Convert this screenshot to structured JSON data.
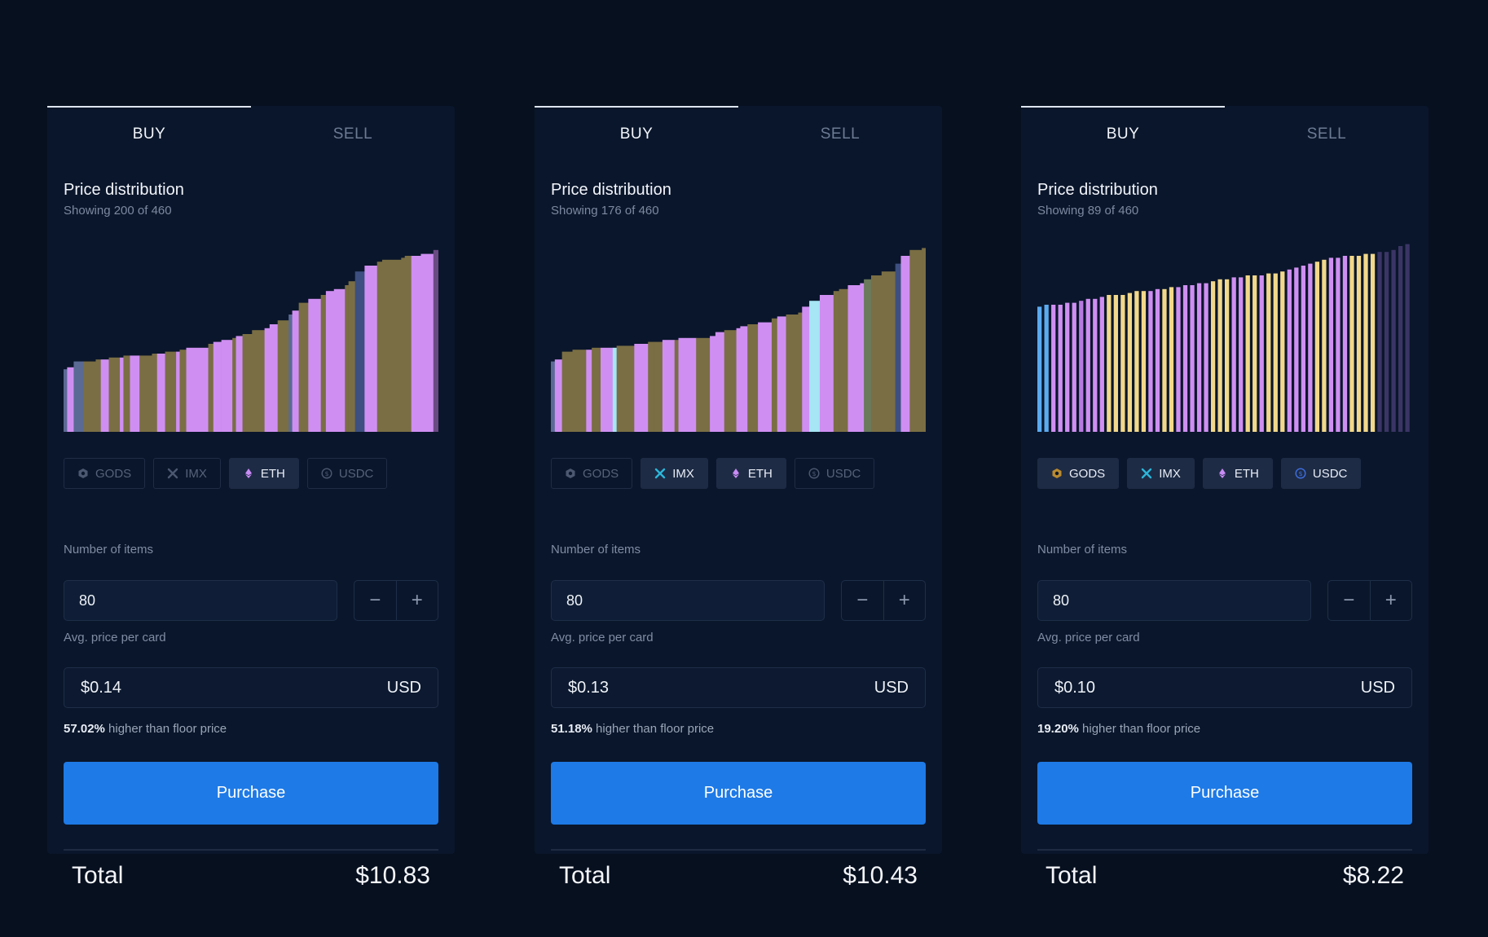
{
  "panels": [
    {
      "tabs": {
        "buy": "BUY",
        "sell": "SELL"
      },
      "distribution": {
        "title": "Price distribution",
        "subtitle": "Showing 200 of 460"
      },
      "currencies": [
        {
          "label": "GODS",
          "active": false,
          "icon": "gods-icon",
          "color": "#b98a2e"
        },
        {
          "label": "IMX",
          "active": false,
          "icon": "imx-icon",
          "color": "#2bb6d9"
        },
        {
          "label": "ETH",
          "active": true,
          "icon": "eth-icon",
          "color": "#c98cf5"
        },
        {
          "label": "USDC",
          "active": false,
          "icon": "usdc-icon",
          "color": "#3d6fe0"
        }
      ],
      "items_label": "Number of items",
      "items_value": "80",
      "avg_label": "Avg. price per card",
      "avg_value": "$0.14",
      "avg_currency": "USD",
      "floor_pct": "57.02%",
      "floor_text": " higher than floor price",
      "purchase_label": "Purchase",
      "total_label": "Total",
      "total_value": "$10.83"
    },
    {
      "tabs": {
        "buy": "BUY",
        "sell": "SELL"
      },
      "distribution": {
        "title": "Price distribution",
        "subtitle": "Showing 176 of 460"
      },
      "currencies": [
        {
          "label": "GODS",
          "active": false,
          "icon": "gods-icon",
          "color": "#b98a2e"
        },
        {
          "label": "IMX",
          "active": true,
          "icon": "imx-icon",
          "color": "#2bb6d9"
        },
        {
          "label": "ETH",
          "active": true,
          "icon": "eth-icon",
          "color": "#c98cf5"
        },
        {
          "label": "USDC",
          "active": false,
          "icon": "usdc-icon",
          "color": "#3d6fe0"
        }
      ],
      "items_label": "Number of items",
      "items_value": "80",
      "avg_label": "Avg. price per card",
      "avg_value": "$0.13",
      "avg_currency": "USD",
      "floor_pct": "51.18%",
      "floor_text": " higher than floor price",
      "purchase_label": "Purchase",
      "total_label": "Total",
      "total_value": "$10.43"
    },
    {
      "tabs": {
        "buy": "BUY",
        "sell": "SELL"
      },
      "distribution": {
        "title": "Price distribution",
        "subtitle": "Showing 89 of 460"
      },
      "currencies": [
        {
          "label": "GODS",
          "active": true,
          "icon": "gods-icon",
          "color": "#b98a2e"
        },
        {
          "label": "IMX",
          "active": true,
          "icon": "imx-icon",
          "color": "#2bb6d9"
        },
        {
          "label": "ETH",
          "active": true,
          "icon": "eth-icon",
          "color": "#c98cf5"
        },
        {
          "label": "USDC",
          "active": true,
          "icon": "usdc-icon",
          "color": "#3d6fe0"
        }
      ],
      "items_label": "Number of items",
      "items_value": "80",
      "avg_label": "Avg. price per card",
      "avg_value": "$0.10",
      "avg_currency": "USD",
      "floor_pct": "19.20%",
      "floor_text": " higher than floor price",
      "purchase_label": "Purchase",
      "total_label": "Total",
      "total_value": "$8.22"
    }
  ],
  "chart_data": [
    {
      "type": "bar",
      "series": [
        {
          "values": [
            0.32,
            0.33,
            0.36,
            0.36,
            0.37,
            0.37,
            0.38,
            0.38,
            0.39,
            0.39,
            0.39,
            0.4,
            0.4,
            0.41,
            0.41,
            0.42,
            0.43,
            0.43,
            0.45,
            0.46,
            0.47,
            0.48,
            0.49,
            0.5,
            0.52,
            0.53,
            0.55,
            0.57,
            0.6,
            0.62,
            0.66,
            0.68,
            0.7,
            0.72,
            0.73,
            0.75,
            0.77,
            0.82,
            0.85,
            0.87,
            0.88,
            0.88,
            0.89,
            0.9,
            0.9,
            0.91,
            0.93
          ]
        },
        {
          "colors": [
            "#5a6a94",
            "#cf8ff2",
            "#5a6a94",
            "#7a6e44",
            "#7a6e44",
            "#cf8ff2",
            "#7a6e44",
            "#cf8ff2",
            "#7a6e44",
            "#cf8ff2",
            "#7a6e44",
            "#7a6e44",
            "#cf8ff2",
            "#7a6e44",
            "#cf8ff2",
            "#7a6e44",
            "#cf8ff2",
            "#cf8ff2",
            "#7a6e44",
            "#cf8ff2",
            "#cf8ff2",
            "#7a6e44",
            "#cf8ff2",
            "#7a6e44",
            "#7a6e44",
            "#cf8ff2",
            "#cf8ff2",
            "#7a6e44",
            "#5a6a94",
            "#cf8ff2",
            "#7a6e44",
            "#cf8ff2",
            "#7a6e44",
            "#cf8ff2",
            "#cf8ff2",
            "#7a6e44",
            "#7a6e44",
            "#3d4f80",
            "#cf8ff2",
            "#7a6e44",
            "#7a6e44",
            "#7a6e44",
            "#7a6e44",
            "#7a6e44",
            "#cf8ff2",
            "#cf8ff2",
            "#6a4a82"
          ]
        }
      ]
    },
    {
      "type": "bar",
      "series": [
        {
          "values": [
            0.36,
            0.37,
            0.41,
            0.42,
            0.42,
            0.43,
            0.43,
            0.43,
            0.44,
            0.44,
            0.45,
            0.46,
            0.46,
            0.47,
            0.47,
            0.48,
            0.48,
            0.48,
            0.49,
            0.51,
            0.52,
            0.53,
            0.54,
            0.55,
            0.56,
            0.58,
            0.59,
            0.6,
            0.61,
            0.64,
            0.67,
            0.7,
            0.72,
            0.73,
            0.75,
            0.76,
            0.78,
            0.8,
            0.82,
            0.86,
            0.9,
            0.93,
            0.94
          ]
        },
        {
          "colors": [
            "#5a6a94",
            "#cf8ff2",
            "#7a6e44",
            "#7a6e44",
            "#cf8ff2",
            "#7a6e44",
            "#cf8ff2",
            "#a6e6f5",
            "#7a6e44",
            "#7a6e44",
            "#cf8ff2",
            "#7a6e44",
            "#7a6e44",
            "#cf8ff2",
            "#7a6e44",
            "#cf8ff2",
            "#cf8ff2",
            "#7a6e44",
            "#cf8ff2",
            "#cf8ff2",
            "#7a6e44",
            "#cf8ff2",
            "#cf8ff2",
            "#7a6e44",
            "#cf8ff2",
            "#7a6e44",
            "#cf8ff2",
            "#7a6e44",
            "#7a6e44",
            "#cf8ff2",
            "#a6e6f5",
            "#cf8ff2",
            "#7a6e44",
            "#7a6e44",
            "#cf8ff2",
            "#cf8ff2",
            "#6a7a5a",
            "#7a6e44",
            "#7a6e44",
            "#3d4f80",
            "#cf8ff2",
            "#7a6e44",
            "#7a6e44"
          ]
        }
      ]
    },
    {
      "type": "bar",
      "series": [
        {
          "values": [
            0.64,
            0.65,
            0.65,
            0.65,
            0.66,
            0.66,
            0.67,
            0.68,
            0.68,
            0.69,
            0.7,
            0.7,
            0.7,
            0.71,
            0.72,
            0.72,
            0.72,
            0.73,
            0.73,
            0.74,
            0.74,
            0.75,
            0.75,
            0.76,
            0.76,
            0.77,
            0.78,
            0.78,
            0.79,
            0.79,
            0.8,
            0.8,
            0.8,
            0.81,
            0.81,
            0.82,
            0.83,
            0.84,
            0.85,
            0.86,
            0.87,
            0.88,
            0.89,
            0.89,
            0.9,
            0.9,
            0.9,
            0.91,
            0.91,
            0.92,
            0.92,
            0.93,
            0.95,
            0.96
          ]
        },
        {
          "colors": [
            "#5aaaf0",
            "#5aaaf0",
            "#cf8ff2",
            "#cf8ff2",
            "#cf8ff2",
            "#cf8ff2",
            "#b87ae0",
            "#cf8ff2",
            "#cf8ff2",
            "#cf8ff2",
            "#f2d88a",
            "#f2d88a",
            "#f2d88a",
            "#f2d88a",
            "#f2d88a",
            "#f2d88a",
            "#cf8ff2",
            "#cf8ff2",
            "#f2d88a",
            "#f2d88a",
            "#cf8ff2",
            "#cf8ff2",
            "#cf8ff2",
            "#cf8ff2",
            "#cf8ff2",
            "#f2d88a",
            "#f2d88a",
            "#f2d88a",
            "#cf8ff2",
            "#cf8ff2",
            "#f2d88a",
            "#f2d88a",
            "#cf8ff2",
            "#f2d88a",
            "#f2d88a",
            "#f2d88a",
            "#cf8ff2",
            "#cf8ff2",
            "#cf8ff2",
            "#cf8ff2",
            "#f2d88a",
            "#f2d88a",
            "#cf8ff2",
            "#cf8ff2",
            "#cf8ff2",
            "#f2d88a",
            "#f2d88a",
            "#f2d88a",
            "#f2d88a",
            "#3b3566",
            "#3b3566",
            "#3b3566",
            "#3b3566",
            "#3b3566"
          ]
        }
      ]
    }
  ]
}
